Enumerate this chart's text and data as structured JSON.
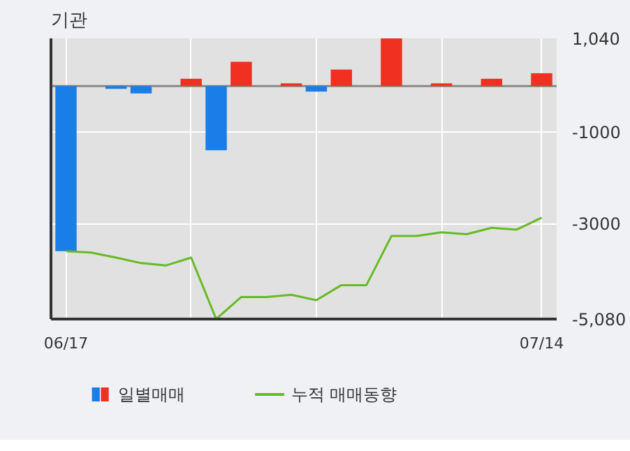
{
  "chart_data": {
    "type": "bar",
    "title": "기관",
    "categories": [
      "06/17",
      null,
      null,
      null,
      null,
      null,
      null,
      null,
      null,
      null,
      null,
      null,
      null,
      null,
      null,
      null,
      null,
      null,
      null,
      "07/14"
    ],
    "series": [
      {
        "name": "일별매매",
        "colors": [
          "#1a7ee8",
          "#1a7ee8",
          "#1a7ee8",
          "#1a7ee8",
          "#1a7ee8",
          "#f03020",
          "#1a7ee8",
          "#f03020",
          "#1a7ee8",
          "#f03020",
          "#1a7ee8",
          "#f03020",
          "#1a7ee8",
          "#f03020",
          "#1a7ee8",
          "#f03020",
          "#1a7ee8",
          "#f03020",
          "#1a7ee8",
          "#f03020"
        ],
        "values": [
          -3600,
          0,
          -60,
          -160,
          0,
          160,
          -1400,
          530,
          0,
          60,
          -120,
          360,
          0,
          1040,
          0,
          60,
          0,
          160,
          0,
          280
        ]
      },
      {
        "name": "누적 매매동향",
        "type": "line",
        "color": "#66bb22",
        "values": [
          -3600,
          -3630,
          -3740,
          -3860,
          -3910,
          -3740,
          -5080,
          -4600,
          -4600,
          -4550,
          -4670,
          -4340,
          -4340,
          -3270,
          -3270,
          -3190,
          -3230,
          -3090,
          -3130,
          -2870
        ]
      }
    ],
    "ylim": [
      -5080,
      1040
    ],
    "yticks": [
      {
        "value": 1040,
        "label": "1,040"
      },
      {
        "value": -1000,
        "label": "-1000"
      },
      {
        "value": -3000,
        "label": "-3000"
      },
      {
        "value": -5080,
        "label": "-5,080"
      }
    ],
    "ref_lines": [
      {
        "axis": "y",
        "value": 0,
        "label": null,
        "color": "#888888"
      }
    ],
    "grid": true,
    "legend": "bottom"
  }
}
